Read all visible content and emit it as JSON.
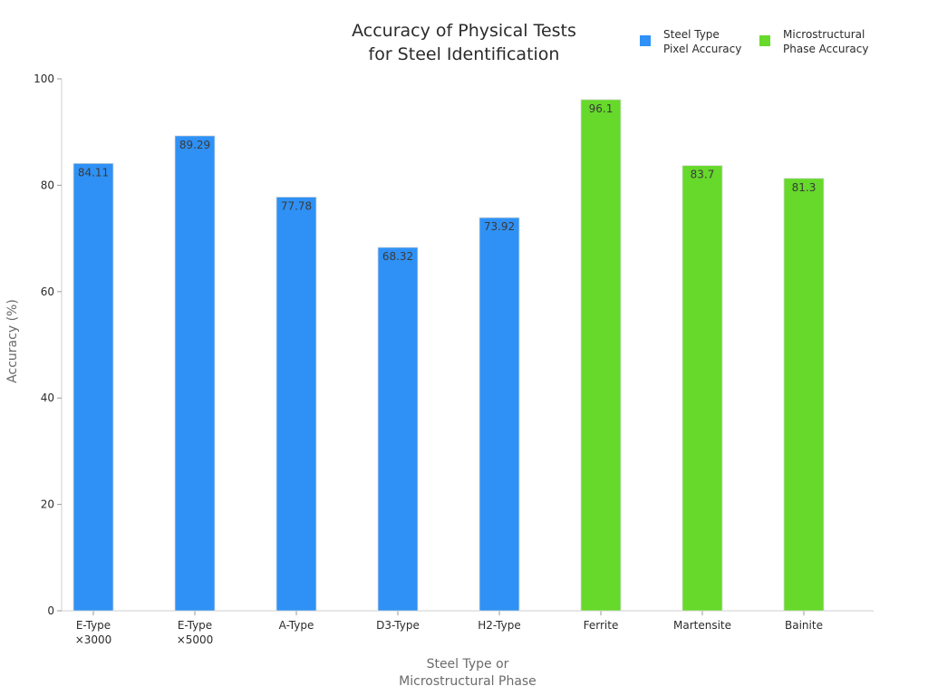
{
  "chart_data": {
    "type": "bar",
    "title": [
      "Accuracy of Physical Tests",
      "for Steel Identification"
    ],
    "xlabel": [
      "Steel Type or",
      "Microstructural Phase"
    ],
    "ylabel": "Accuracy (%)",
    "ylim": [
      0,
      100
    ],
    "yticks": [
      0,
      20,
      40,
      60,
      80,
      100
    ],
    "grid": false,
    "legend_position": "top-right",
    "categories": [
      [
        "E-Type",
        "×3000"
      ],
      [
        "E-Type",
        "×5000"
      ],
      [
        "A-Type"
      ],
      [
        "D3-Type"
      ],
      [
        "H2-Type"
      ],
      [
        "Ferrite"
      ],
      [
        "Martensite"
      ],
      [
        "Bainite"
      ]
    ],
    "series": [
      {
        "name": [
          "Steel Type",
          "Pixel Accuracy"
        ],
        "color": "#2f91f5",
        "values": [
          84.11,
          89.29,
          77.78,
          68.32,
          73.92,
          null,
          null,
          null
        ],
        "labels": [
          "84.11",
          "89.29",
          "77.78",
          "68.32",
          "73.92",
          null,
          null,
          null
        ]
      },
      {
        "name": [
          "Microstructural",
          "Phase Accuracy"
        ],
        "color": "#66d92b",
        "values": [
          null,
          null,
          null,
          null,
          null,
          96.1,
          83.7,
          81.3
        ],
        "labels": [
          null,
          null,
          null,
          null,
          null,
          "96.1",
          "83.7",
          "81.3"
        ]
      }
    ]
  }
}
